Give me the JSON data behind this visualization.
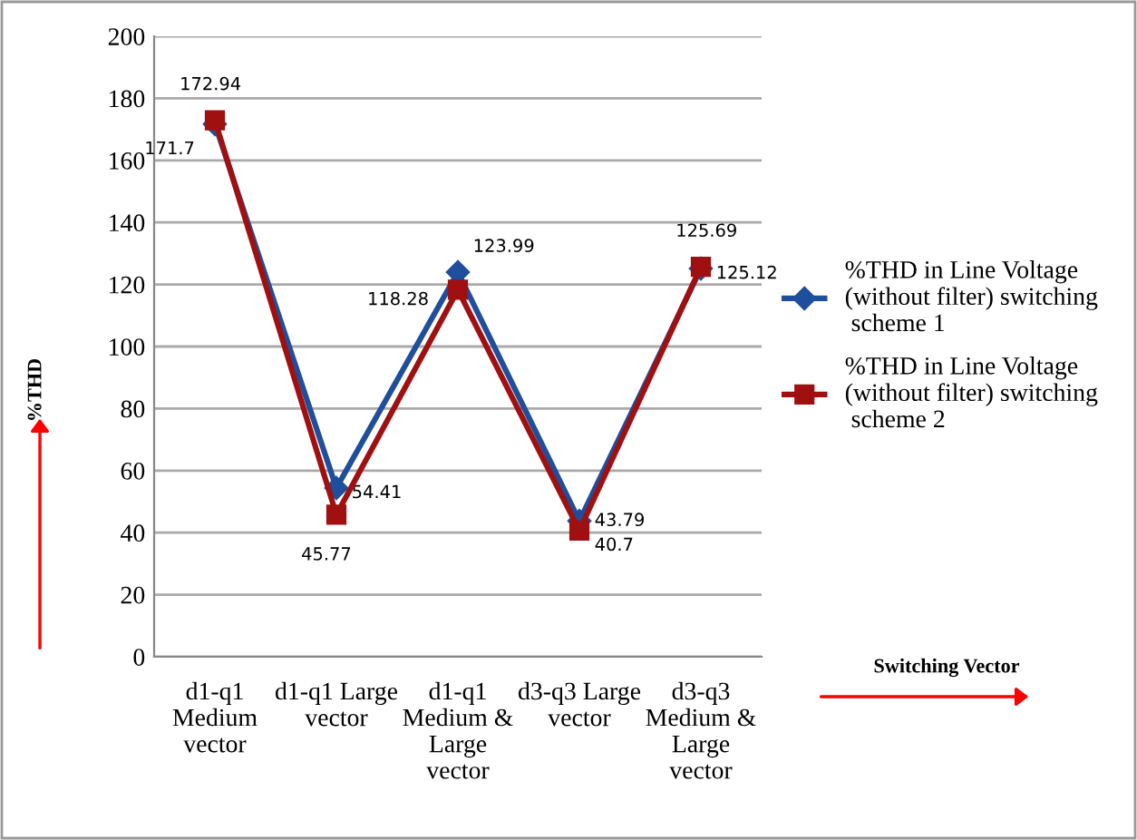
{
  "chart_data": {
    "type": "line",
    "ylabel": "%THD",
    "annotations": [
      "Switching Vector"
    ],
    "categories": [
      "d1-q1\nMedium\nvector",
      "d1-q1 Large\nvector",
      "d1-q1\nMedium &\nLarge\nvector",
      "d3-q3 Large\nvector",
      "d3-q3\nMedium &\nLarge\nvector"
    ],
    "series": [
      {
        "name": "%THD in Line Voltage (without filter)  switching scheme 1",
        "color": "#1f4e9c",
        "marker": "diamond",
        "values": [
          171.7,
          54.41,
          123.99,
          43.79,
          125.12
        ],
        "value_labels": [
          "171.7",
          "54.41",
          "123.99",
          "43.79",
          "125.12"
        ]
      },
      {
        "name": "%THD in Line Voltage (without filter)  switching scheme 2",
        "color": "#a01010",
        "marker": "square",
        "values": [
          172.94,
          45.77,
          118.28,
          40.7,
          125.69
        ],
        "value_labels": [
          "172.94",
          "45.77",
          "118.28",
          "40.7",
          "125.69"
        ]
      }
    ],
    "ylim": [
      0,
      200
    ],
    "yticks": [
      0,
      20,
      40,
      60,
      80,
      100,
      120,
      140,
      160,
      180,
      200
    ],
    "grid": "y",
    "legend": "right"
  }
}
